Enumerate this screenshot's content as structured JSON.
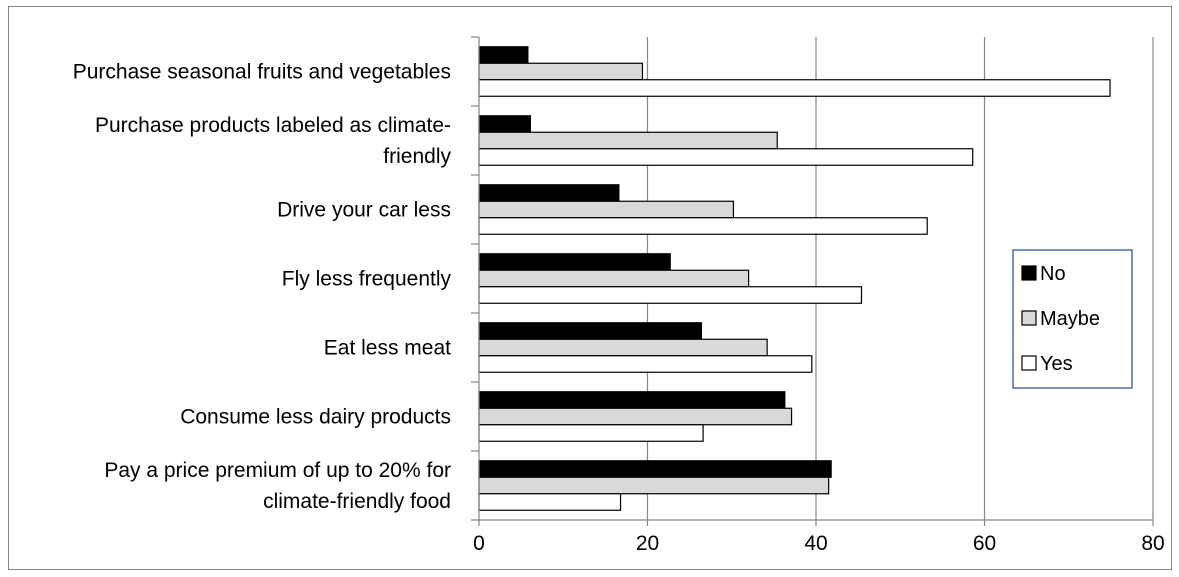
{
  "chart_data": {
    "type": "bar",
    "orientation": "horizontal",
    "title": "",
    "xlabel": "",
    "ylabel": "",
    "xlim": [
      0,
      80
    ],
    "x_ticks": [
      "0",
      "20",
      "40",
      "60",
      "80"
    ],
    "grid": true,
    "legend_position": "right",
    "categories": [
      "Purchase seasonal fruits and vegetables",
      "Purchase products labeled as climate-friendly",
      "Drive your car less",
      "Fly less frequently",
      "Eat less meat",
      "Consume less dairy products",
      "Pay a price premium of up to 20% for climate-friendly food"
    ],
    "category_lines": [
      [
        "Purchase seasonal fruits and vegetables"
      ],
      [
        "Purchase products labeled as climate-",
        "friendly"
      ],
      [
        "Drive your car less"
      ],
      [
        "Fly less frequently"
      ],
      [
        "Eat less meat"
      ],
      [
        "Consume less dairy products"
      ],
      [
        "Pay a price premium of up to 20% for",
        "climate-friendly food"
      ]
    ],
    "series": [
      {
        "name": "No",
        "color": "#000000",
        "values": [
          5.8,
          6.1,
          16.6,
          22.7,
          26.4,
          36.3,
          41.8
        ]
      },
      {
        "name": "Maybe",
        "color": "#d9d9d9",
        "values": [
          19.4,
          35.4,
          30.2,
          32.0,
          34.2,
          37.1,
          41.5
        ]
      },
      {
        "name": "Yes",
        "color": "#ffffff",
        "values": [
          74.9,
          58.6,
          53.2,
          45.4,
          39.5,
          26.6,
          16.8
        ]
      }
    ]
  }
}
